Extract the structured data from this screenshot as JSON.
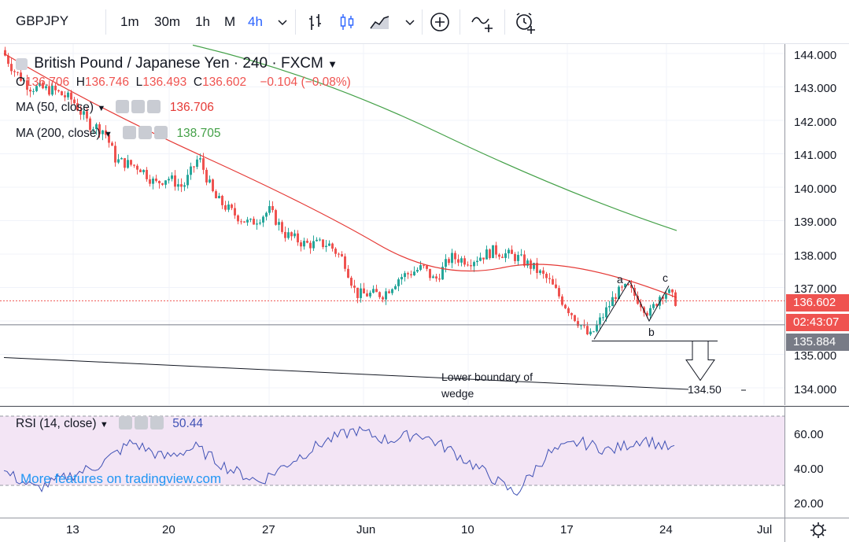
{
  "toolbar": {
    "symbol": "GBPJPY",
    "timeframes": [
      {
        "label": "1m",
        "active": false
      },
      {
        "label": "30m",
        "active": false
      },
      {
        "label": "1h",
        "active": false
      },
      {
        "label": "M",
        "active": false
      },
      {
        "label": "4h",
        "active": true
      }
    ],
    "icons": [
      "dropdown-chevron-icon",
      "bar-chart-icon",
      "candlestick-icon",
      "area-chart-icon",
      "chevron-down-icon",
      "add-indicator-icon",
      "compare-icon",
      "alert-icon"
    ]
  },
  "legend": {
    "title": "British Pound / Japanese Yen · 240 · FXCM",
    "ohlc": {
      "open_label": "O",
      "open": "136.706",
      "high_label": "H",
      "high": "136.746",
      "low_label": "L",
      "low": "136.493",
      "close_label": "C",
      "close": "136.602",
      "change": "−0.104 (−0.08%)"
    },
    "ma50": {
      "label": "MA (50, close)",
      "value": "136.706",
      "color": "#e53935"
    },
    "ma200": {
      "label": "MA (200, close)",
      "value": "138.705",
      "color": "#43a047"
    }
  },
  "price_axis": {
    "labels": [
      "144.000",
      "143.000",
      "142.000",
      "141.000",
      "140.000",
      "139.000",
      "138.000",
      "137.000",
      "135.000",
      "134.000"
    ],
    "current_price": "136.602",
    "countdown": "02:43:07",
    "line_price": "135.884"
  },
  "annotations": {
    "wave_a": "a",
    "wave_b": "b",
    "wave_c": "c",
    "wedge_label_line1": "Lower boundary of",
    "wedge_label_line2": "wedge",
    "target": "134.50"
  },
  "rsi": {
    "label": "RSI (14, close)",
    "value": "50.44",
    "axis_labels": [
      "60.00",
      "40.00",
      "20.00"
    ],
    "promo": "More features on tradingview.com"
  },
  "time_axis": {
    "labels": [
      "13",
      "20",
      "27",
      "Jun",
      "10",
      "17",
      "24",
      "Jul"
    ]
  },
  "colors": {
    "up": "#26a69a",
    "down": "#ef5350",
    "ma50": "#e53935",
    "ma200": "#43a047",
    "rsi_line": "#3f51b5",
    "rsi_band": "#f3e5f5",
    "price_tag": "#ef5350",
    "line_tag": "#787b86"
  },
  "chart_data": {
    "type": "candlestick",
    "title": "British Pound / Japanese Yen · 240 · FXCM",
    "ylim": [
      133.5,
      144.3
    ],
    "x_ticks": [
      "13",
      "20",
      "27",
      "Jun",
      "10",
      "17",
      "24",
      "Jul"
    ],
    "series": [
      {
        "name": "MA (50, close)",
        "values": [
          143.6,
          142.5,
          141.5,
          140.5,
          139.6,
          138.6,
          138.0,
          137.6,
          137.3,
          137.1,
          136.8,
          136.7
        ]
      },
      {
        "name": "MA (200, close)",
        "values": [
          144.3,
          143.3,
          142.3,
          141.4,
          140.6,
          139.9,
          139.2,
          138.7
        ]
      },
      {
        "name": "RSI (14, close)",
        "values": [
          38,
          28,
          35,
          42,
          55,
          46,
          52,
          40,
          32,
          44,
          55,
          62,
          56,
          60,
          50,
          38,
          25,
          48,
          55,
          50,
          57,
          50
        ]
      }
    ],
    "horizontal_lines": [
      135.884,
      135.4
    ],
    "target": 134.5
  }
}
